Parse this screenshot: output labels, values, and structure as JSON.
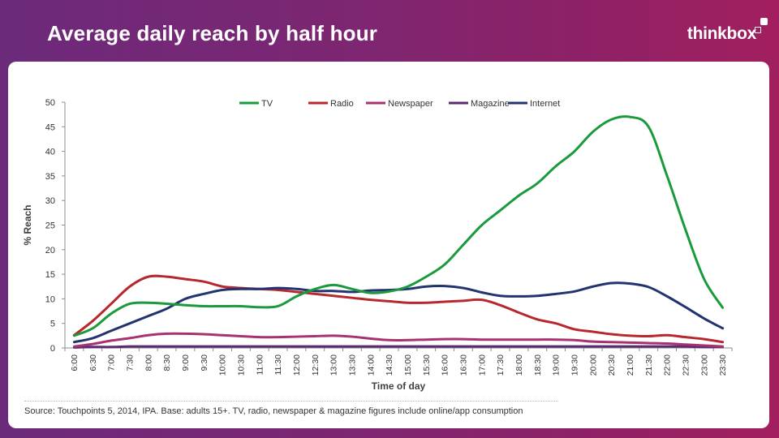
{
  "header": {
    "title": "Average daily reach by half hour",
    "brand": "thinkbox"
  },
  "source_note": "Source: Touchpoints 5, 2014, IPA. Base: adults 15+. TV, radio, newspaper & magazine figures include online/app consumption",
  "chart_data": {
    "type": "line",
    "title": "",
    "xlabel": "Time of day",
    "ylabel": "% Reach",
    "ylim": [
      0,
      50
    ],
    "yticks": [
      0,
      5,
      10,
      15,
      20,
      25,
      30,
      35,
      40,
      45,
      50
    ],
    "grid": false,
    "legend_placement": "top",
    "categories": [
      "6:00",
      "6:30",
      "7:00",
      "7:30",
      "8:00",
      "8:30",
      "9:00",
      "9:30",
      "10:00",
      "10:30",
      "11:00",
      "11:30",
      "12:00",
      "12:30",
      "13:00",
      "13:30",
      "14:00",
      "14:30",
      "15:00",
      "15:30",
      "16:00",
      "16:30",
      "17:00",
      "17:30",
      "18:00",
      "18:30",
      "19:00",
      "19:30",
      "20:00",
      "20:30",
      "21:00",
      "21:30",
      "22:00",
      "22:30",
      "23:00",
      "23:30"
    ],
    "series": [
      {
        "name": "TV",
        "color": "#1a9a3c",
        "values": [
          2.5,
          4,
          7,
          9,
          9.2,
          9,
          8.7,
          8.5,
          8.5,
          8.5,
          8.3,
          8.5,
          10.5,
          12,
          12.8,
          12,
          11.2,
          11.5,
          12.5,
          14.5,
          17,
          21,
          25,
          28,
          31,
          33.5,
          37,
          40,
          44,
          46.5,
          47,
          45,
          35,
          24,
          14,
          8.2
        ]
      },
      {
        "name": "Radio",
        "color": "#b7282e",
        "values": [
          2.6,
          5.5,
          9,
          12.5,
          14.5,
          14.5,
          14,
          13.5,
          12.5,
          12.2,
          12,
          11.8,
          11.4,
          11,
          10.6,
          10.2,
          9.8,
          9.5,
          9.2,
          9.2,
          9.4,
          9.6,
          9.8,
          8.7,
          7.2,
          5.8,
          5,
          3.8,
          3.3,
          2.8,
          2.5,
          2.4,
          2.6,
          2.2,
          1.8,
          1.2
        ]
      },
      {
        "name": "Newspaper",
        "color": "#a8326f",
        "values": [
          0.3,
          0.8,
          1.5,
          2,
          2.6,
          2.9,
          2.9,
          2.8,
          2.6,
          2.4,
          2.2,
          2.2,
          2.3,
          2.4,
          2.5,
          2.3,
          1.9,
          1.6,
          1.6,
          1.7,
          1.8,
          1.8,
          1.7,
          1.7,
          1.7,
          1.7,
          1.7,
          1.6,
          1.3,
          1.2,
          1.1,
          1,
          0.9,
          0.7,
          0.5,
          0.3
        ]
      },
      {
        "name": "Magazine",
        "color": "#5a2a72",
        "values": [
          0.1,
          0.2,
          0.2,
          0.3,
          0.3,
          0.3,
          0.3,
          0.3,
          0.3,
          0.3,
          0.3,
          0.3,
          0.3,
          0.3,
          0.3,
          0.3,
          0.3,
          0.3,
          0.3,
          0.3,
          0.3,
          0.3,
          0.3,
          0.3,
          0.3,
          0.3,
          0.3,
          0.3,
          0.3,
          0.3,
          0.3,
          0.3,
          0.3,
          0.3,
          0.2,
          0.2
        ]
      },
      {
        "name": "Internet",
        "color": "#223470",
        "values": [
          1.2,
          2,
          3.5,
          5,
          6.5,
          8,
          10,
          11,
          11.8,
          12,
          12,
          12.2,
          12,
          11.6,
          11.6,
          11.4,
          11.7,
          11.8,
          12,
          12.5,
          12.6,
          12.2,
          11.3,
          10.6,
          10.5,
          10.6,
          11,
          11.5,
          12.5,
          13.2,
          13.1,
          12.4,
          10.5,
          8.3,
          6,
          4
        ]
      }
    ]
  }
}
